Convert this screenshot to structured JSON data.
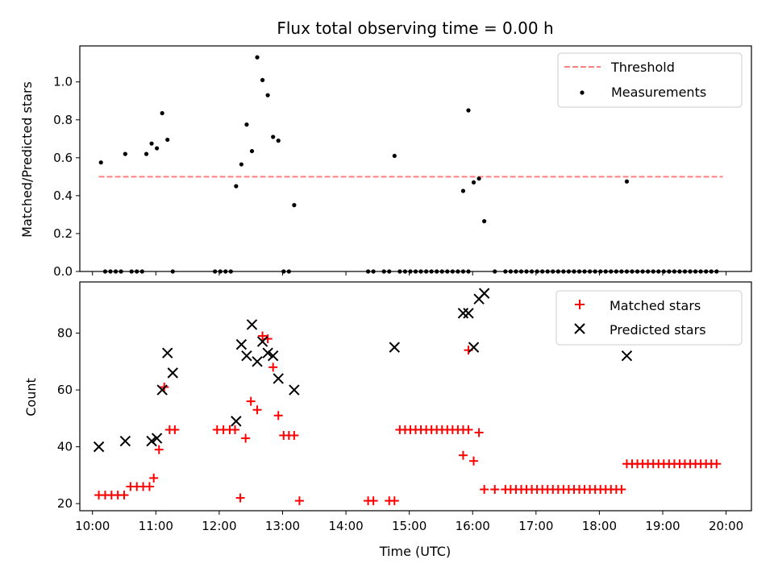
{
  "chart_data": [
    {
      "type": "scatter",
      "title": "Flux total observing time = 0.00 h",
      "xlabel": "",
      "ylabel": "Matched/Predicted stars",
      "xlim": [
        "09:48",
        "20:24"
      ],
      "ylim": [
        0,
        1.19
      ],
      "yticks": [
        "0.0",
        "0.2",
        "0.4",
        "0.6",
        "0.8",
        "1.0"
      ],
      "legend_position": "top-right",
      "grid": false,
      "colors": {
        "threshold": "#ff7f7f",
        "measurements": "#000000"
      },
      "threshold": {
        "name": "Threshold",
        "value": 0.5,
        "x": [
          "10:06",
          "19:57"
        ]
      },
      "series": [
        {
          "name": "Measurements",
          "points": [
            [
              "10:08",
              0.575
            ],
            [
              "10:12",
              0.0
            ],
            [
              "10:17",
              0.0
            ],
            [
              "10:22",
              0.0
            ],
            [
              "10:27",
              0.0
            ],
            [
              "10:31",
              0.62
            ],
            [
              "10:37",
              0.0
            ],
            [
              "10:42",
              0.0
            ],
            [
              "10:47",
              0.0
            ],
            [
              "10:51",
              0.62
            ],
            [
              "10:56",
              0.675
            ],
            [
              "11:01",
              0.65
            ],
            [
              "11:06",
              0.835
            ],
            [
              "11:11",
              0.695
            ],
            [
              "11:16",
              0.0
            ],
            [
              "11:56",
              0.0
            ],
            [
              "12:01",
              0.0
            ],
            [
              "12:06",
              0.0
            ],
            [
              "12:11",
              0.0
            ],
            [
              "12:16",
              0.45
            ],
            [
              "12:21",
              0.565
            ],
            [
              "12:26",
              0.775
            ],
            [
              "12:31",
              0.635
            ],
            [
              "12:36",
              1.13
            ],
            [
              "12:41",
              1.01
            ],
            [
              "12:46",
              0.93
            ],
            [
              "12:51",
              0.71
            ],
            [
              "12:56",
              0.69
            ],
            [
              "13:01",
              0.0
            ],
            [
              "13:06",
              0.0
            ],
            [
              "13:11",
              0.35
            ],
            [
              "14:21",
              0.0
            ],
            [
              "14:26",
              0.0
            ],
            [
              "14:36",
              0.0
            ],
            [
              "14:41",
              0.0
            ],
            [
              "14:46",
              0.61
            ],
            [
              "14:51",
              0.0
            ],
            [
              "14:56",
              0.0
            ],
            [
              "15:01",
              0.0
            ],
            [
              "15:06",
              0.0
            ],
            [
              "15:11",
              0.0
            ],
            [
              "15:16",
              0.0
            ],
            [
              "15:21",
              0.0
            ],
            [
              "15:26",
              0.0
            ],
            [
              "15:31",
              0.0
            ],
            [
              "15:36",
              0.0
            ],
            [
              "15:41",
              0.0
            ],
            [
              "15:46",
              0.0
            ],
            [
              "15:51",
              0.0
            ],
            [
              "15:56",
              0.0
            ],
            [
              "15:51",
              0.425
            ],
            [
              "15:56",
              0.85
            ],
            [
              "16:01",
              0.47
            ],
            [
              "16:06",
              0.49
            ],
            [
              "16:11",
              0.265
            ],
            [
              "16:21",
              0.0
            ],
            [
              "16:31",
              0.0
            ],
            [
              "16:36",
              0.0
            ],
            [
              "16:41",
              0.0
            ],
            [
              "16:46",
              0.0
            ],
            [
              "16:51",
              0.0
            ],
            [
              "16:56",
              0.0
            ],
            [
              "17:01",
              0.0
            ],
            [
              "17:06",
              0.0
            ],
            [
              "17:11",
              0.0
            ],
            [
              "17:16",
              0.0
            ],
            [
              "17:21",
              0.0
            ],
            [
              "17:26",
              0.0
            ],
            [
              "17:31",
              0.0
            ],
            [
              "17:36",
              0.0
            ],
            [
              "17:41",
              0.0
            ],
            [
              "17:46",
              0.0
            ],
            [
              "17:51",
              0.0
            ],
            [
              "17:56",
              0.0
            ],
            [
              "18:01",
              0.0
            ],
            [
              "18:06",
              0.0
            ],
            [
              "18:11",
              0.0
            ],
            [
              "18:16",
              0.0
            ],
            [
              "18:21",
              0.0
            ],
            [
              "18:26",
              0.0
            ],
            [
              "18:31",
              0.0
            ],
            [
              "18:36",
              0.0
            ],
            [
              "18:41",
              0.0
            ],
            [
              "18:46",
              0.0
            ],
            [
              "18:51",
              0.0
            ],
            [
              "18:56",
              0.0
            ],
            [
              "18:26",
              0.475
            ],
            [
              "19:01",
              0.0
            ],
            [
              "19:06",
              0.0
            ],
            [
              "19:11",
              0.0
            ],
            [
              "19:16",
              0.0
            ],
            [
              "19:21",
              0.0
            ],
            [
              "19:26",
              0.0
            ],
            [
              "19:31",
              0.0
            ],
            [
              "19:36",
              0.0
            ],
            [
              "19:41",
              0.0
            ],
            [
              "19:46",
              0.0
            ],
            [
              "19:51",
              0.0
            ]
          ]
        }
      ]
    },
    {
      "type": "scatter",
      "title": "",
      "xlabel": "Time (UTC)",
      "ylabel": "Count",
      "xlim": [
        "09:48",
        "20:24"
      ],
      "ylim": [
        17.5,
        98
      ],
      "yticks": [
        "20",
        "40",
        "60",
        "80"
      ],
      "xticks": [
        "10:00",
        "11:00",
        "12:00",
        "13:00",
        "14:00",
        "15:00",
        "16:00",
        "17:00",
        "18:00",
        "19:00",
        "20:00"
      ],
      "legend_position": "top-right",
      "grid": false,
      "colors": {
        "matched": "#ff0000",
        "predicted": "#000000"
      },
      "series": [
        {
          "name": "Matched stars",
          "marker": "plus",
          "points": [
            [
              "10:06",
              23
            ],
            [
              "10:12",
              23
            ],
            [
              "10:18",
              23
            ],
            [
              "10:24",
              23
            ],
            [
              "10:30",
              23
            ],
            [
              "10:36",
              26
            ],
            [
              "10:42",
              26
            ],
            [
              "10:48",
              26
            ],
            [
              "10:54",
              26
            ],
            [
              "10:58",
              29
            ],
            [
              "11:03",
              39
            ],
            [
              "11:08",
              61
            ],
            [
              "11:13",
              46
            ],
            [
              "11:18",
              46
            ],
            [
              "11:58",
              46
            ],
            [
              "12:04",
              46
            ],
            [
              "12:10",
              46
            ],
            [
              "12:15",
              46
            ],
            [
              "12:20",
              22
            ],
            [
              "12:25",
              43
            ],
            [
              "12:30",
              56
            ],
            [
              "12:36",
              53
            ],
            [
              "12:41",
              79
            ],
            [
              "12:46",
              78
            ],
            [
              "12:51",
              68
            ],
            [
              "12:56",
              51
            ],
            [
              "13:01",
              44
            ],
            [
              "13:06",
              44
            ],
            [
              "13:11",
              44
            ],
            [
              "13:16",
              21
            ],
            [
              "14:21",
              21
            ],
            [
              "14:26",
              21
            ],
            [
              "14:41",
              21
            ],
            [
              "14:46",
              21
            ],
            [
              "14:51",
              46
            ],
            [
              "14:56",
              46
            ],
            [
              "15:01",
              46
            ],
            [
              "15:06",
              46
            ],
            [
              "15:11",
              46
            ],
            [
              "15:16",
              46
            ],
            [
              "15:21",
              46
            ],
            [
              "15:26",
              46
            ],
            [
              "15:31",
              46
            ],
            [
              "15:36",
              46
            ],
            [
              "15:41",
              46
            ],
            [
              "15:46",
              46
            ],
            [
              "15:51",
              46
            ],
            [
              "15:56",
              46
            ],
            [
              "15:51",
              37
            ],
            [
              "15:56",
              74
            ],
            [
              "16:01",
              35
            ],
            [
              "16:06",
              45
            ],
            [
              "16:11",
              25
            ],
            [
              "16:21",
              25
            ],
            [
              "16:31",
              25
            ],
            [
              "16:36",
              25
            ],
            [
              "16:41",
              25
            ],
            [
              "16:46",
              25
            ],
            [
              "16:51",
              25
            ],
            [
              "16:56",
              25
            ],
            [
              "17:01",
              25
            ],
            [
              "17:06",
              25
            ],
            [
              "17:11",
              25
            ],
            [
              "17:16",
              25
            ],
            [
              "17:21",
              25
            ],
            [
              "17:26",
              25
            ],
            [
              "17:31",
              25
            ],
            [
              "17:36",
              25
            ],
            [
              "17:41",
              25
            ],
            [
              "17:46",
              25
            ],
            [
              "17:51",
              25
            ],
            [
              "17:56",
              25
            ],
            [
              "18:01",
              25
            ],
            [
              "18:06",
              25
            ],
            [
              "18:11",
              25
            ],
            [
              "18:16",
              25
            ],
            [
              "18:21",
              25
            ],
            [
              "18:26",
              34
            ],
            [
              "18:31",
              34
            ],
            [
              "18:36",
              34
            ],
            [
              "18:41",
              34
            ],
            [
              "18:46",
              34
            ],
            [
              "18:51",
              34
            ],
            [
              "18:56",
              34
            ],
            [
              "19:01",
              34
            ],
            [
              "19:06",
              34
            ],
            [
              "19:11",
              34
            ],
            [
              "19:16",
              34
            ],
            [
              "19:21",
              34
            ],
            [
              "19:26",
              34
            ],
            [
              "19:31",
              34
            ],
            [
              "19:36",
              34
            ],
            [
              "19:41",
              34
            ],
            [
              "19:46",
              34
            ],
            [
              "19:51",
              34
            ]
          ]
        },
        {
          "name": "Predicted stars",
          "marker": "x",
          "points": [
            [
              "10:06",
              40
            ],
            [
              "10:31",
              42
            ],
            [
              "10:56",
              42
            ],
            [
              "11:01",
              43
            ],
            [
              "11:06",
              60
            ],
            [
              "11:11",
              73
            ],
            [
              "11:16",
              66
            ],
            [
              "12:16",
              49
            ],
            [
              "12:21",
              76
            ],
            [
              "12:26",
              72
            ],
            [
              "12:31",
              83
            ],
            [
              "12:36",
              70
            ],
            [
              "12:41",
              77
            ],
            [
              "12:46",
              73
            ],
            [
              "12:51",
              72
            ],
            [
              "12:56",
              64
            ],
            [
              "13:11",
              60
            ],
            [
              "14:46",
              75
            ],
            [
              "15:51",
              87
            ],
            [
              "15:56",
              87
            ],
            [
              "16:01",
              75
            ],
            [
              "16:06",
              92
            ],
            [
              "16:11",
              94
            ],
            [
              "18:26",
              72
            ]
          ]
        }
      ]
    }
  ]
}
